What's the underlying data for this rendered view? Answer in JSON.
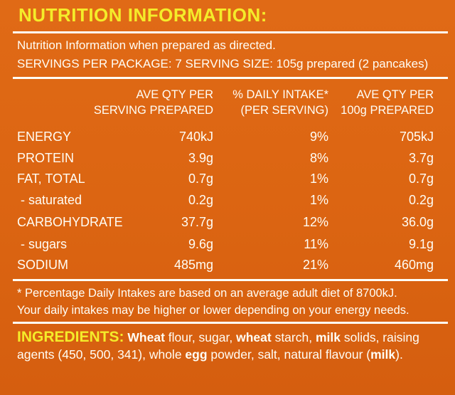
{
  "title": "NUTRITION INFORMATION:",
  "intro": "Nutrition Information when prepared as directed.",
  "servings": "SERVINGS PER PACKAGE: 7  SERVING SIZE: 105g prepared (2 pancakes)",
  "columns": {
    "serving_1": "AVE QTY PER",
    "serving_2": "SERVING PREPARED",
    "daily_1": "% DAILY INTAKE*",
    "daily_2": "(PER SERVING)",
    "per100_1": "AVE QTY PER",
    "per100_2": "100g PREPARED"
  },
  "rows": [
    {
      "name": "ENERGY",
      "serving": "740kJ",
      "daily": "9%",
      "per100": "705kJ"
    },
    {
      "name": "PROTEIN",
      "serving": "3.9g",
      "daily": "8%",
      "per100": "3.7g"
    },
    {
      "name": "FAT, TOTAL",
      "serving": "0.7g",
      "daily": "1%",
      "per100": "0.7g"
    },
    {
      "name": " - saturated",
      "serving": "0.2g",
      "daily": "1%",
      "per100": "0.2g"
    },
    {
      "name": "CARBOHYDRATE",
      "serving": "37.7g",
      "daily": "12%",
      "per100": "36.0g"
    },
    {
      "name": " - sugars",
      "serving": "9.6g",
      "daily": "11%",
      "per100": "9.1g"
    },
    {
      "name": "SODIUM",
      "serving": "485mg",
      "daily": "21%",
      "per100": "460mg"
    }
  ],
  "footnote_1": "* Percentage Daily Intakes are based on an average adult diet of 8700kJ.",
  "footnote_2": "Your daily intakes may be higher or lower depending on your energy needs.",
  "ingredients": {
    "label": "INGREDIENTS:",
    "p1": " ",
    "w1": "Wheat",
    "p2": " flour, sugar, ",
    "w2": "wheat",
    "p3": " starch, ",
    "w3": "milk",
    "p4": " solids, raising agents (450, 500, 341), whole ",
    "w4": "egg",
    "p5": " powder, salt, natural flavour (",
    "w5": "milk",
    "p6": ")."
  }
}
